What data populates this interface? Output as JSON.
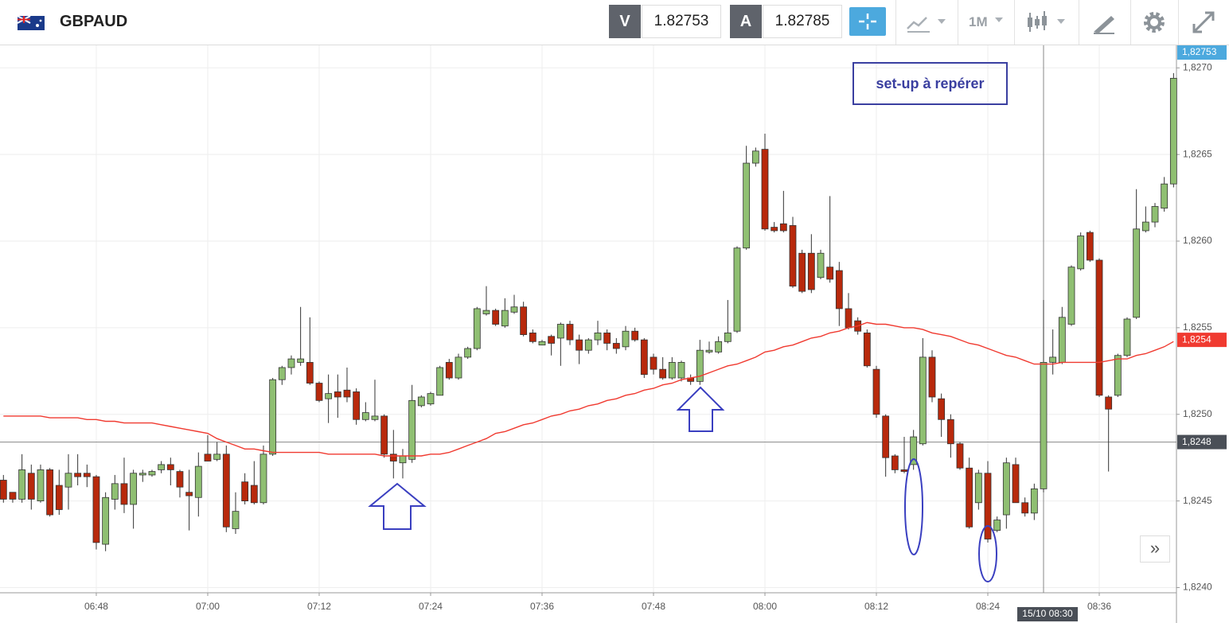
{
  "header": {
    "symbol": "GBPAUD",
    "bid_label": "V",
    "bid": "1.82753",
    "ask_label": "A",
    "ask": "1.82785",
    "timeframe": "1M"
  },
  "chart_data": {
    "type": "candlestick",
    "annotation": "set-up à repérer",
    "grid": true,
    "up_color": "#8fbf72",
    "down_color": "#b8290c",
    "ylim": [
      1.82397,
      1.82713
    ],
    "yticks": [
      {
        "value": 1.824,
        "label": "1,8240"
      },
      {
        "value": 1.8245,
        "label": "1,8245"
      },
      {
        "value": 1.825,
        "label": "1,8250"
      },
      {
        "value": 1.8255,
        "label": "1,8255"
      },
      {
        "value": 1.826,
        "label": "1,8260"
      },
      {
        "value": 1.8265,
        "label": "1,8265"
      },
      {
        "value": 1.827,
        "label": "1,8270"
      }
    ],
    "last_price": {
      "value": 1.82753,
      "label": "1,82753",
      "color": "#4ca9de"
    },
    "ma_price": {
      "value": 1.82543,
      "label": "1,8254"
    },
    "crosshair": {
      "x_label": "15/10 08:30",
      "y": {
        "value": 1.82484,
        "label": "1,8248"
      }
    },
    "categories": [
      null,
      null,
      null,
      null,
      null,
      null,
      null,
      null,
      null,
      null,
      "06:48",
      null,
      null,
      null,
      null,
      null,
      null,
      null,
      null,
      null,
      null,
      null,
      "07:00",
      null,
      null,
      null,
      null,
      null,
      null,
      null,
      null,
      null,
      null,
      null,
      "07:12",
      null,
      null,
      null,
      null,
      null,
      null,
      null,
      null,
      null,
      null,
      null,
      "07:24",
      null,
      null,
      null,
      null,
      null,
      null,
      null,
      null,
      null,
      null,
      null,
      "07:36",
      null,
      null,
      null,
      null,
      null,
      null,
      null,
      null,
      null,
      null,
      null,
      "07:48",
      null,
      null,
      null,
      null,
      null,
      null,
      null,
      null,
      null,
      null,
      null,
      "08:00",
      null,
      null,
      null,
      null,
      null,
      null,
      null,
      null,
      null,
      null,
      null,
      "08:12",
      null,
      null,
      null,
      null,
      null,
      null,
      null,
      null,
      null,
      null,
      null,
      "08:24",
      null,
      null,
      null,
      null,
      null,
      null,
      null,
      null,
      null,
      null,
      null,
      "08:36",
      null,
      null,
      null,
      null,
      null,
      null,
      null,
      null
    ],
    "open": [
      1.82462,
      1.82455,
      1.82451,
      1.82466,
      1.8245,
      1.82468,
      1.82459,
      1.82458,
      1.82466,
      1.82466,
      1.82464,
      1.82425,
      1.82451,
      1.8246,
      1.82448,
      1.82465,
      1.82465,
      1.82468,
      1.82471,
      1.82467,
      1.82455,
      1.82452,
      1.82477,
      1.82474,
      1.82477,
      1.82434,
      1.82461,
      1.82459,
      1.82449,
      1.82477,
      1.8252,
      1.82527,
      1.8253,
      1.8253,
      1.82518,
      1.82509,
      1.82513,
      1.82514,
      1.82513,
      1.82497,
      1.82497,
      1.82499,
      1.82477,
      1.82472,
      1.82474,
      1.82505,
      1.82506,
      1.82511,
      1.8253,
      1.82521,
      1.82533,
      1.82538,
      1.82558,
      1.8256,
      1.82551,
      1.82559,
      1.82562,
      1.82547,
      1.8254,
      1.82545,
      1.82544,
      1.82552,
      1.82543,
      1.82537,
      1.82543,
      1.82547,
      1.82541,
      1.82539,
      1.82548,
      1.82543,
      1.82533,
      1.82526,
      1.82521,
      1.82521,
      1.82521,
      1.82519,
      1.82536,
      1.82536,
      1.82542,
      1.82548,
      1.82596,
      1.82645,
      1.82653,
      1.82608,
      1.8261,
      1.82609,
      1.82593,
      1.82593,
      1.82579,
      1.82585,
      1.82583,
      1.82561,
      1.82554,
      1.82547,
      1.82526,
      1.82499,
      1.82476,
      1.82468,
      1.82471,
      1.82483,
      1.82533,
      1.82509,
      1.82497,
      1.82483,
      1.82469,
      1.82449,
      1.82466,
      1.82433,
      1.82442,
      1.82471,
      1.82449,
      1.82443,
      1.82457,
      1.8253,
      1.8253,
      1.82552,
      1.82584,
      1.82605,
      1.82589,
      1.8251,
      1.82511,
      1.82534,
      1.82556,
      1.82606,
      1.82611,
      1.82619,
      1.82633
    ],
    "high": [
      1.82465,
      1.82455,
      1.82477,
      1.82471,
      1.82471,
      1.82469,
      1.82468,
      1.82477,
      1.82477,
      1.82471,
      1.82465,
      1.82455,
      1.82465,
      1.82475,
      1.82468,
      1.82468,
      1.82468,
      1.82473,
      1.82475,
      1.82468,
      1.82468,
      1.82478,
      1.82488,
      1.82484,
      1.82482,
      1.82455,
      1.82466,
      1.82473,
      1.82482,
      1.82521,
      1.82528,
      1.82534,
      1.82562,
      1.82556,
      1.82519,
      1.82523,
      1.82523,
      1.82527,
      1.82515,
      1.82507,
      1.8252,
      1.825,
      1.82491,
      1.8248,
      1.82517,
      1.82511,
      1.82513,
      1.82528,
      1.82532,
      1.82535,
      1.82539,
      1.82562,
      1.82574,
      1.82561,
      1.82567,
      1.82569,
      1.82565,
      1.82549,
      1.82543,
      1.82546,
      1.82553,
      1.82554,
      1.82546,
      1.82544,
      1.82554,
      1.82549,
      1.82544,
      1.82551,
      1.8255,
      1.82544,
      1.82535,
      1.82533,
      1.82533,
      1.82531,
      1.82523,
      1.82543,
      1.82542,
      1.82545,
      1.82566,
      1.82597,
      1.82655,
      1.82654,
      1.82662,
      1.82611,
      1.82629,
      1.82614,
      1.82595,
      1.82604,
      1.82595,
      1.82626,
      1.82588,
      1.8257,
      1.82556,
      1.82549,
      1.82528,
      1.825,
      1.82477,
      1.82487,
      1.82491,
      1.82544,
      1.82537,
      1.82512,
      1.825,
      1.82484,
      1.82475,
      1.82468,
      1.82473,
      1.82441,
      1.82475,
      1.82475,
      1.82452,
      1.8246,
      1.82566,
      1.82549,
      1.82562,
      1.82586,
      1.82605,
      1.82606,
      1.8259,
      1.82511,
      1.82535,
      1.82556,
      1.8263,
      1.8262,
      1.82622,
      1.82637,
      1.82697
    ],
    "low": [
      1.82449,
      1.82449,
      1.82449,
      1.82445,
      1.82449,
      1.82441,
      1.82442,
      1.82445,
      1.82459,
      1.82458,
      1.82422,
      1.82421,
      1.82445,
      1.82443,
      1.82434,
      1.82461,
      1.82464,
      1.82466,
      1.82459,
      1.82452,
      1.82433,
      1.82441,
      1.82473,
      1.82473,
      1.82432,
      1.82431,
      1.82448,
      1.82448,
      1.82448,
      1.82476,
      1.82517,
      1.82523,
      1.82528,
      1.82517,
      1.82507,
      1.82495,
      1.82498,
      1.82507,
      1.82494,
      1.82496,
      1.82496,
      1.82475,
      1.82463,
      1.82463,
      1.82472,
      1.82504,
      1.82505,
      1.82511,
      1.8252,
      1.8252,
      1.82532,
      1.82537,
      1.82557,
      1.82551,
      1.8255,
      1.82558,
      1.82545,
      1.82541,
      1.8254,
      1.82534,
      1.82528,
      1.8254,
      1.82529,
      1.82535,
      1.8254,
      1.82537,
      1.82535,
      1.82537,
      1.82542,
      1.82521,
      1.82523,
      1.8252,
      1.8252,
      1.82519,
      1.82517,
      1.82517,
      1.82535,
      1.82535,
      1.82541,
      1.82547,
      1.82595,
      1.82643,
      1.82606,
      1.82605,
      1.82605,
      1.82573,
      1.8257,
      1.8257,
      1.82578,
      1.82576,
      1.82551,
      1.82549,
      1.82546,
      1.82527,
      1.82498,
      1.82464,
      1.82466,
      1.82466,
      1.82468,
      1.82482,
      1.82507,
      1.82487,
      1.82475,
      1.82468,
      1.82434,
      1.82445,
      1.82426,
      1.82432,
      1.82434,
      1.82449,
      1.82441,
      1.82439,
      1.82455,
      1.82523,
      1.82529,
      1.82551,
      1.82583,
      1.82588,
      1.8251,
      1.82467,
      1.8251,
      1.82533,
      1.82555,
      1.82605,
      1.82608,
      1.82617,
      1.82631
    ],
    "close": [
      1.82451,
      1.82451,
      1.82468,
      1.82451,
      1.82468,
      1.82442,
      1.82445,
      1.82466,
      1.82464,
      1.82464,
      1.82426,
      1.82452,
      1.8246,
      1.82448,
      1.82466,
      1.82466,
      1.82467,
      1.82471,
      1.82468,
      1.82458,
      1.82453,
      1.8247,
      1.82473,
      1.82477,
      1.82435,
      1.82444,
      1.8245,
      1.82449,
      1.82477,
      1.8252,
      1.82527,
      1.82532,
      1.82532,
      1.82518,
      1.82508,
      1.82512,
      1.8251,
      1.8251,
      1.82497,
      1.82501,
      1.82499,
      1.82477,
      1.82473,
      1.82476,
      1.82508,
      1.8251,
      1.82512,
      1.82527,
      1.82521,
      1.82533,
      1.82538,
      1.82561,
      1.8256,
      1.82552,
      1.8256,
      1.82562,
      1.82546,
      1.82542,
      1.82542,
      1.82541,
      1.82552,
      1.82543,
      1.82537,
      1.82543,
      1.82547,
      1.82541,
      1.82538,
      1.82548,
      1.82543,
      1.82523,
      1.82526,
      1.82521,
      1.8253,
      1.8253,
      1.82519,
      1.82537,
      1.82537,
      1.82542,
      1.82547,
      1.82596,
      1.82645,
      1.82652,
      1.82607,
      1.82606,
      1.82606,
      1.82574,
      1.82571,
      1.82572,
      1.82593,
      1.82578,
      1.82561,
      1.8255,
      1.82548,
      1.82528,
      1.825,
      1.82475,
      1.82468,
      1.82467,
      1.82487,
      1.82533,
      1.8251,
      1.82497,
      1.82483,
      1.82469,
      1.82435,
      1.82466,
      1.82428,
      1.82439,
      1.82472,
      1.82449,
      1.82443,
      1.82457,
      1.8253,
      1.82533,
      1.82556,
      1.82585,
      1.82603,
      1.82589,
      1.82511,
      1.82503,
      1.82534,
      1.82555,
      1.82607,
      1.82611,
      1.8262,
      1.82633,
      1.82694
    ],
    "moving_average": {
      "color": "#f03a30",
      "values": [
        1.82499,
        1.82499,
        1.82499,
        1.82499,
        1.82499,
        1.82498,
        1.82498,
        1.82498,
        1.82498,
        1.82497,
        1.82497,
        1.82496,
        1.82496,
        1.82495,
        1.82495,
        1.82495,
        1.82495,
        1.82494,
        1.82493,
        1.82492,
        1.82491,
        1.8249,
        1.82489,
        1.82486,
        1.82484,
        1.82482,
        1.8248,
        1.8248,
        1.82479,
        1.82478,
        1.82478,
        1.82478,
        1.82478,
        1.82478,
        1.82478,
        1.82477,
        1.82477,
        1.82477,
        1.82477,
        1.82477,
        1.82477,
        1.82476,
        1.82476,
        1.82476,
        1.82476,
        1.82476,
        1.82477,
        1.82477,
        1.82478,
        1.8248,
        1.82482,
        1.82484,
        1.82486,
        1.82489,
        1.8249,
        1.82492,
        1.82494,
        1.82495,
        1.82497,
        1.82499,
        1.825,
        1.82502,
        1.82503,
        1.82505,
        1.82506,
        1.82508,
        1.82509,
        1.82511,
        1.82512,
        1.82514,
        1.82515,
        1.82517,
        1.82518,
        1.8252,
        1.82521,
        1.82522,
        1.82524,
        1.82526,
        1.82528,
        1.82529,
        1.82531,
        1.82533,
        1.82536,
        1.82537,
        1.82539,
        1.8254,
        1.82542,
        1.82544,
        1.82545,
        1.82547,
        1.82548,
        1.8255,
        1.82551,
        1.82553,
        1.82552,
        1.82552,
        1.82551,
        1.8255,
        1.8255,
        1.82549,
        1.82547,
        1.82546,
        1.82545,
        1.82543,
        1.82541,
        1.8254,
        1.82538,
        1.82536,
        1.82534,
        1.82533,
        1.82531,
        1.82529,
        1.82529,
        1.82529,
        1.8253,
        1.8253,
        1.8253,
        1.8253,
        1.8253,
        1.82531,
        1.82532,
        1.82532,
        1.82534,
        1.82535,
        1.82537,
        1.82539,
        1.82542
      ]
    }
  }
}
